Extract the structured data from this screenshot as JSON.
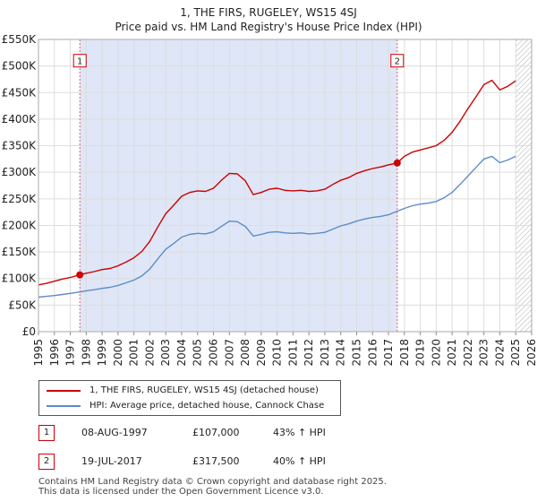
{
  "chart_data": {
    "type": "line",
    "title": "1, THE FIRS, RUGELEY, WS15 4SJ",
    "subtitle": "Price paid vs. HM Land Registry's House Price Index (HPI)",
    "xlabel": "",
    "ylabel": "",
    "xlim": [
      1995,
      2026
    ],
    "ylim": [
      0,
      550000
    ],
    "x_ticks": [
      "1995",
      "1996",
      "1997",
      "1998",
      "1999",
      "2000",
      "2001",
      "2002",
      "2003",
      "2004",
      "2005",
      "2006",
      "2007",
      "2008",
      "2009",
      "2010",
      "2011",
      "2012",
      "2013",
      "2014",
      "2015",
      "2016",
      "2017",
      "2018",
      "2019",
      "2020",
      "2021",
      "2022",
      "2023",
      "2024",
      "2025",
      "2026"
    ],
    "y_ticks": [
      {
        "value": 0,
        "label": "£0"
      },
      {
        "value": 50000,
        "label": "£50K"
      },
      {
        "value": 100000,
        "label": "£100K"
      },
      {
        "value": 150000,
        "label": "£150K"
      },
      {
        "value": 200000,
        "label": "£200K"
      },
      {
        "value": 250000,
        "label": "£250K"
      },
      {
        "value": 300000,
        "label": "£300K"
      },
      {
        "value": 350000,
        "label": "£350K"
      },
      {
        "value": 400000,
        "label": "£400K"
      },
      {
        "value": 450000,
        "label": "£450K"
      },
      {
        "value": 500000,
        "label": "£500K"
      },
      {
        "value": 550000,
        "label": "£550K"
      }
    ],
    "grid": true,
    "shaded_regions": [
      {
        "from": 1997.6,
        "to": 2017.55,
        "color": "#dfe6f7"
      },
      {
        "from": 2025.0,
        "to": 2026.0,
        "pattern": "hatch"
      }
    ],
    "series": [
      {
        "name": "1, THE FIRS, RUGELEY, WS15 4SJ (detached house)",
        "color": "#cc0000",
        "x": [
          1995.0,
          1995.5,
          1996.0,
          1996.5,
          1997.0,
          1997.6,
          1998.0,
          1998.5,
          1999.0,
          1999.5,
          2000.0,
          2000.5,
          2001.0,
          2001.5,
          2002.0,
          2002.5,
          2003.0,
          2003.5,
          2004.0,
          2004.5,
          2005.0,
          2005.5,
          2006.0,
          2006.5,
          2007.0,
          2007.5,
          2008.0,
          2008.5,
          2009.0,
          2009.5,
          2010.0,
          2010.5,
          2011.0,
          2011.5,
          2012.0,
          2012.5,
          2013.0,
          2013.5,
          2014.0,
          2014.5,
          2015.0,
          2015.5,
          2016.0,
          2016.5,
          2017.0,
          2017.55,
          2018.0,
          2018.5,
          2019.0,
          2019.5,
          2020.0,
          2020.5,
          2021.0,
          2021.5,
          2022.0,
          2022.5,
          2023.0,
          2023.5,
          2024.0,
          2024.5,
          2025.0
        ],
        "values": [
          88000,
          91000,
          95000,
          99000,
          102000,
          107000,
          110000,
          113000,
          117000,
          119000,
          124000,
          131000,
          139000,
          151000,
          170000,
          197000,
          222000,
          238000,
          255000,
          262000,
          265000,
          264000,
          270000,
          285000,
          298000,
          297000,
          284000,
          258000,
          262000,
          268000,
          270000,
          266000,
          265000,
          266000,
          264000,
          265000,
          268000,
          277000,
          285000,
          290000,
          298000,
          303000,
          307000,
          310000,
          314000,
          317500,
          330000,
          338000,
          342000,
          346000,
          350000,
          360000,
          375000,
          396000,
          420000,
          442000,
          465000,
          473000,
          455000,
          462000,
          472000
        ]
      },
      {
        "name": "HPI: Average price, detached house, Cannock Chase",
        "color": "#5b8cc8",
        "x": [
          1995.0,
          1995.5,
          1996.0,
          1996.5,
          1997.0,
          1997.6,
          1998.0,
          1998.5,
          1999.0,
          1999.5,
          2000.0,
          2000.5,
          2001.0,
          2001.5,
          2002.0,
          2002.5,
          2003.0,
          2003.5,
          2004.0,
          2004.5,
          2005.0,
          2005.5,
          2006.0,
          2006.5,
          2007.0,
          2007.5,
          2008.0,
          2008.5,
          2009.0,
          2009.5,
          2010.0,
          2010.5,
          2011.0,
          2011.5,
          2012.0,
          2012.5,
          2013.0,
          2013.5,
          2014.0,
          2014.5,
          2015.0,
          2015.5,
          2016.0,
          2016.5,
          2017.0,
          2017.55,
          2018.0,
          2018.5,
          2019.0,
          2019.5,
          2020.0,
          2020.5,
          2021.0,
          2021.5,
          2022.0,
          2022.5,
          2023.0,
          2023.5,
          2024.0,
          2024.5,
          2025.0
        ],
        "values": [
          65000,
          66500,
          68000,
          70000,
          72000,
          74800,
          77000,
          79000,
          81500,
          83500,
          87000,
          92000,
          97000,
          105000,
          118000,
          137000,
          155000,
          166000,
          178000,
          183000,
          185000,
          184000,
          188000,
          198000,
          208000,
          207000,
          198000,
          180000,
          183000,
          187000,
          188000,
          186000,
          185000,
          186000,
          184000,
          185000,
          187000,
          193000,
          199000,
          203000,
          208000,
          212000,
          215000,
          217000,
          220000,
          226800,
          232000,
          237000,
          240000,
          242000,
          245000,
          252000,
          262000,
          277000,
          293000,
          309000,
          325000,
          330000,
          318000,
          323000,
          330000
        ]
      }
    ],
    "annotations": [
      {
        "id": "1",
        "x": 1997.6,
        "value": 107000,
        "label_value": 510000
      },
      {
        "id": "2",
        "x": 2017.55,
        "value": 317500,
        "label_value": 510000
      }
    ]
  },
  "sales": [
    {
      "num": "1",
      "date": "08-AUG-1997",
      "price": "£107,000",
      "hpi": "43% ↑ HPI"
    },
    {
      "num": "2",
      "date": "19-JUL-2017",
      "price": "£317,500",
      "hpi": "40% ↑ HPI"
    }
  ],
  "footer": {
    "line1": "Contains HM Land Registry data © Crown copyright and database right 2025.",
    "line2": "This data is licensed under the Open Government Licence v3.0."
  }
}
